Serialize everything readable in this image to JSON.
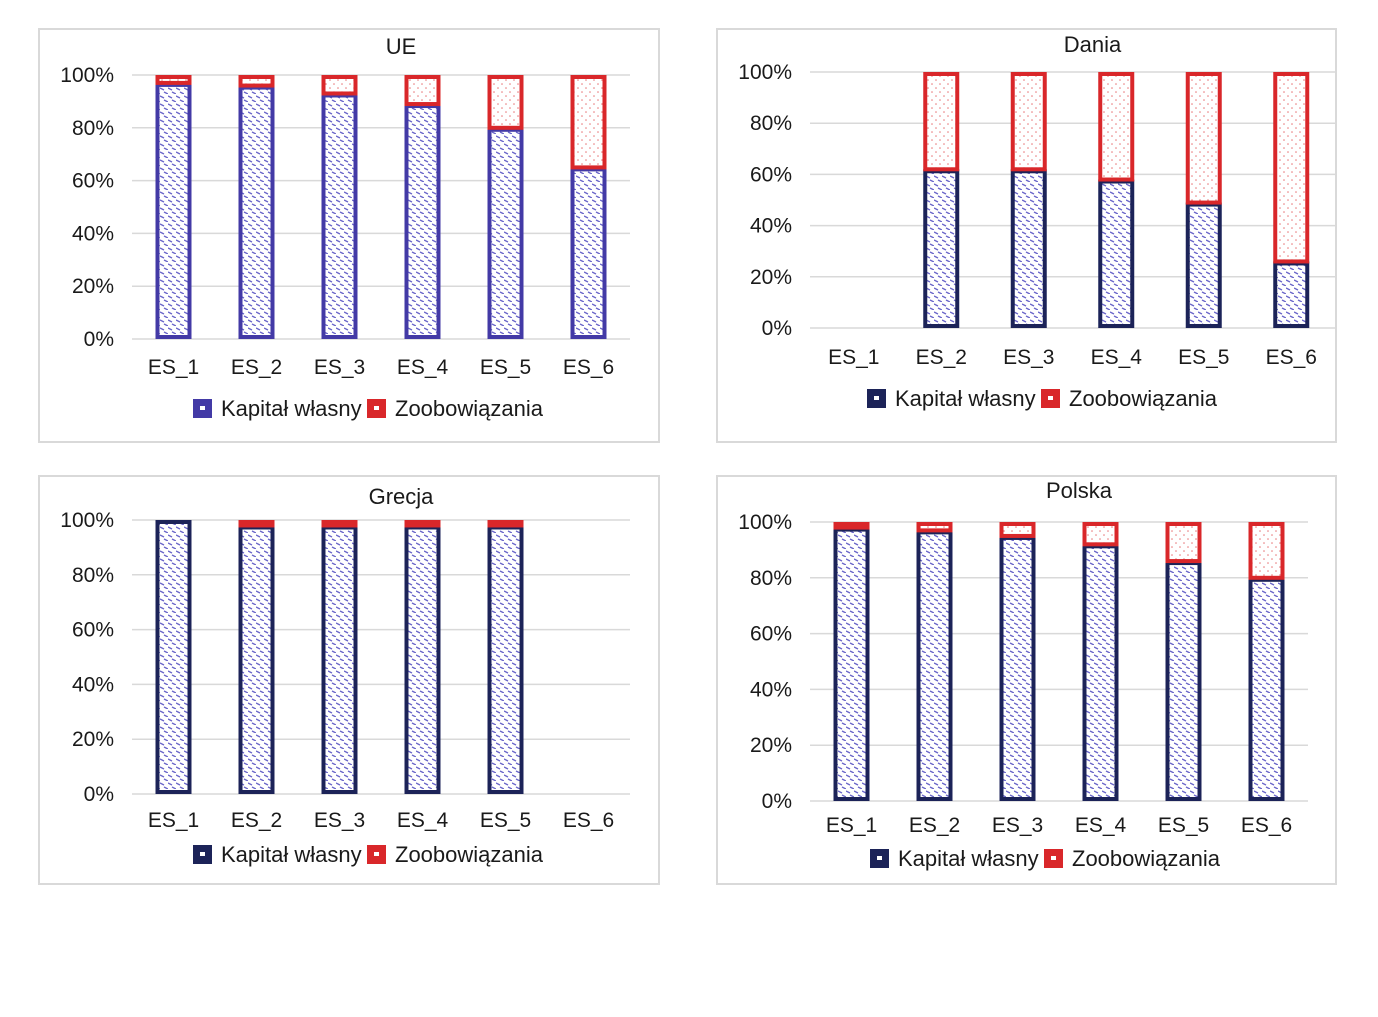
{
  "colors": {
    "ue_equity": "#433aa6",
    "dark_equity": "#1c2358",
    "liabilities": "#d9272a",
    "equity_pattern": "#6a66c9",
    "liabilities_pattern": "#e8787a",
    "grid": "#d9d9d9"
  },
  "chart_data": [
    {
      "type": "bar",
      "stacked": true,
      "title": "UE",
      "categories": [
        "ES_1",
        "ES_2",
        "ES_3",
        "ES_4",
        "ES_5",
        "ES_6"
      ],
      "series": [
        {
          "name": "Kapitał własny",
          "values": [
            97,
            96,
            93,
            89,
            80,
            65
          ]
        },
        {
          "name": "Zoobowiązania",
          "values": [
            3,
            4,
            7,
            11,
            20,
            35
          ]
        }
      ],
      "yticks": [
        "0%",
        "20%",
        "40%",
        "60%",
        "80%",
        "100%"
      ],
      "ylim": [
        0,
        100
      ],
      "grid": true,
      "legend": "bottom",
      "equity_color": "ue_equity"
    },
    {
      "type": "bar",
      "stacked": true,
      "title": "Dania",
      "categories": [
        "ES_1",
        "ES_2",
        "ES_3",
        "ES_4",
        "ES_5",
        "ES_6"
      ],
      "series": [
        {
          "name": "Kapitał własny",
          "values": [
            null,
            62,
            62,
            58,
            49,
            26
          ]
        },
        {
          "name": "Zoobowiązania",
          "values": [
            null,
            38,
            38,
            42,
            51,
            74
          ]
        }
      ],
      "yticks": [
        "0%",
        "20%",
        "40%",
        "60%",
        "80%",
        "100%"
      ],
      "ylim": [
        0,
        100
      ],
      "grid": true,
      "legend": "bottom",
      "equity_color": "dark_equity"
    },
    {
      "type": "bar",
      "stacked": true,
      "title": "Grecja",
      "categories": [
        "ES_1",
        "ES_2",
        "ES_3",
        "ES_4",
        "ES_5",
        "ES_6"
      ],
      "series": [
        {
          "name": "Kapitał własny",
          "values": [
            100,
            98,
            98,
            98,
            98,
            null
          ]
        },
        {
          "name": "Zoobowiązania",
          "values": [
            0,
            2,
            2,
            2,
            2,
            null
          ]
        }
      ],
      "yticks": [
        "0%",
        "20%",
        "40%",
        "60%",
        "80%",
        "100%"
      ],
      "ylim": [
        0,
        100
      ],
      "grid": true,
      "legend": "bottom",
      "equity_color": "dark_equity"
    },
    {
      "type": "bar",
      "stacked": true,
      "title": "Polska",
      "categories": [
        "ES_1",
        "ES_2",
        "ES_3",
        "ES_4",
        "ES_5",
        "ES_6"
      ],
      "series": [
        {
          "name": "Kapitał własny",
          "values": [
            98,
            97,
            95,
            92,
            86,
            80
          ]
        },
        {
          "name": "Zoobowiązania",
          "values": [
            2,
            3,
            5,
            8,
            14,
            20
          ]
        }
      ],
      "yticks": [
        "0%",
        "20%",
        "40%",
        "60%",
        "80%",
        "100%"
      ],
      "ylim": [
        0,
        100
      ],
      "grid": true,
      "legend": "bottom",
      "equity_color": "dark_equity"
    }
  ]
}
